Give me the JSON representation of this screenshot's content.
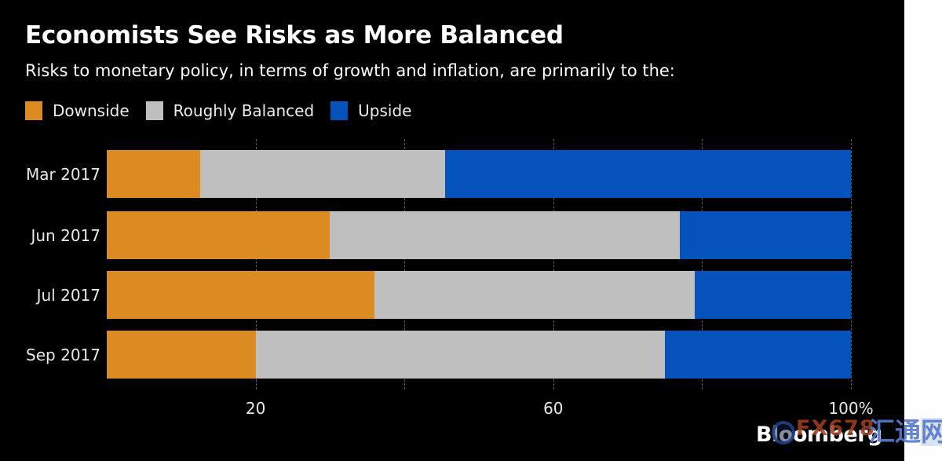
{
  "chart": {
    "title": "Economists See Risks as More Balanced",
    "subtitle": "Risks to monetary policy, in terms of growth and inflation, are primarily to the:",
    "source_label": "Bloomberg"
  },
  "chart_data": {
    "type": "bar",
    "orientation": "horizontal",
    "stacked": true,
    "title": "Economists See Risks as More Balanced",
    "subtitle": "Risks to monetary policy, in terms of growth and inflation, are primarily to the:",
    "categories": [
      "Mar 2017",
      "Jun 2017",
      "Jul 2017",
      "Sep 2017"
    ],
    "series": [
      {
        "name": "Downside",
        "color": "#DC8B22",
        "values": [
          12.5,
          30,
          36,
          20
        ]
      },
      {
        "name": "Roughly Balanced",
        "color": "#BFBFBF",
        "values": [
          33,
          47,
          43,
          55
        ]
      },
      {
        "name": "Upside",
        "color": "#0452BC",
        "values": [
          54.5,
          23,
          21,
          25
        ]
      }
    ],
    "xlabel": "",
    "ylabel": "",
    "xlim": [
      0,
      100
    ],
    "unit": "%",
    "x_ticks": [
      {
        "value": 20,
        "label": "20"
      },
      {
        "value": 60,
        "label": "60"
      },
      {
        "value": 100,
        "label": "100%"
      }
    ],
    "gridlines": [
      20,
      40,
      60,
      80,
      100
    ],
    "grid_style": "dashed",
    "legend_position": "top"
  },
  "watermark": {
    "fx_text": "FX678",
    "cn_chars": [
      "汇",
      "通",
      "网"
    ]
  },
  "colors": {
    "background": "#000000",
    "right_strip": "#FEFEFE",
    "title_text": "#FFFFFF",
    "axis_text": "#E8E8E8",
    "gridline": "#5C5C5C",
    "downside": "#DC8B22",
    "roughly_balanced": "#BFBFBF",
    "upside": "#0452BC",
    "watermark_fx": "#A03E1C",
    "watermark_cn": "#587ACD"
  }
}
